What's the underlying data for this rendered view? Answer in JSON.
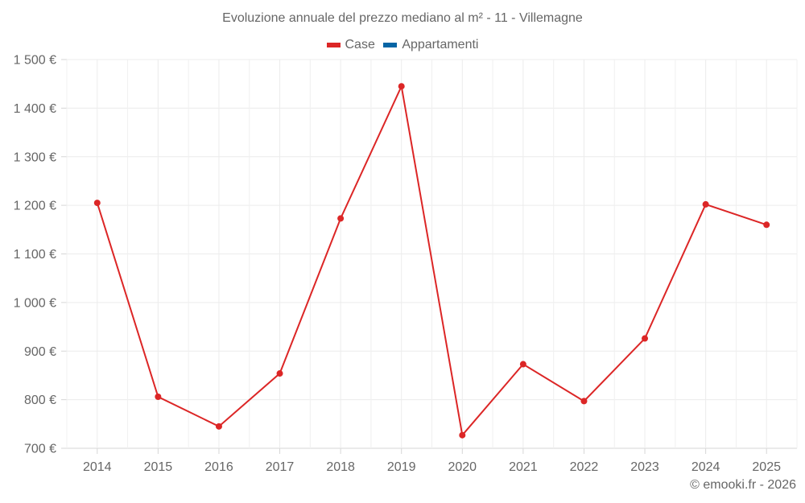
{
  "chart_data": {
    "type": "line",
    "title": "Evoluzione annuale del prezzo mediano al m² - 11 - Villemagne",
    "xlabel": "",
    "ylabel": "",
    "categories": [
      "2014",
      "2015",
      "2016",
      "2017",
      "2018",
      "2019",
      "2020",
      "2021",
      "2022",
      "2023",
      "2024",
      "2025"
    ],
    "series": [
      {
        "name": "Case",
        "color": "#dc2626",
        "values": [
          1205,
          806,
          745,
          854,
          1173,
          1445,
          727,
          873,
          797,
          926,
          1202,
          1160
        ]
      },
      {
        "name": "Appartamenti",
        "color": "#0565a5",
        "values": []
      }
    ],
    "ylim": [
      700,
      1500
    ],
    "yticks": [
      700,
      800,
      900,
      1000,
      1100,
      1200,
      1300,
      1400,
      1500
    ],
    "ytick_labels": [
      "700 €",
      "800 €",
      "900 €",
      "1 000 €",
      "1 100 €",
      "1 200 €",
      "1 300 €",
      "1 400 €",
      "1 500 €"
    ],
    "grid": true,
    "legend_position": "top"
  },
  "legend": [
    {
      "label": "Case",
      "color": "#dc2626"
    },
    {
      "label": "Appartamenti",
      "color": "#0565a5"
    }
  ],
  "footer": "© emooki.fr - 2026"
}
